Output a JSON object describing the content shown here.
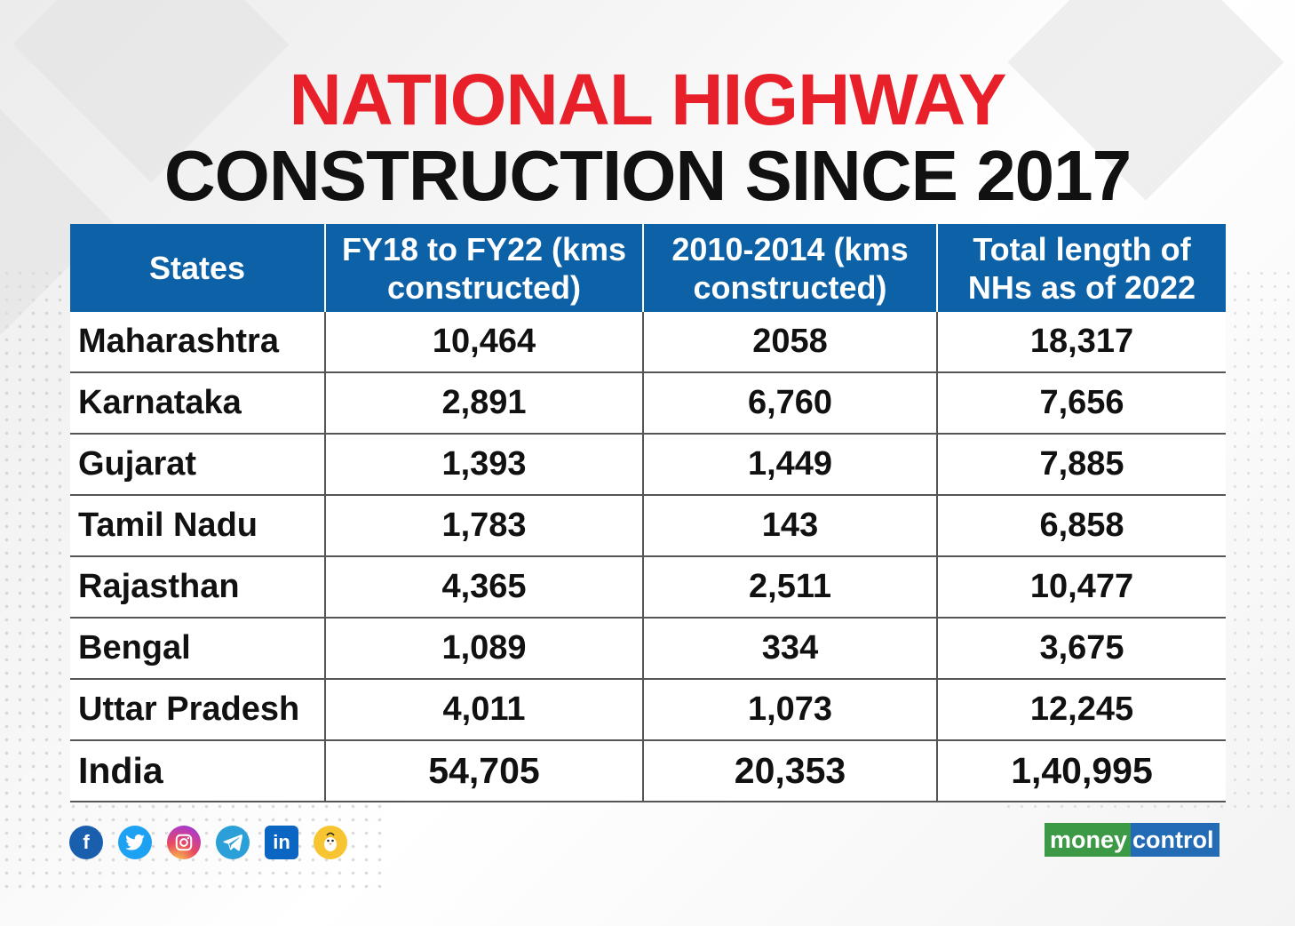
{
  "title": {
    "line1": "NATIONAL HIGHWAY",
    "line2": "CONSTRUCTION SINCE 2017"
  },
  "table": {
    "headers": [
      "States",
      "FY18 to FY22 (kms constructed)",
      "2010-2014 (kms constructed)",
      "Total length of NHs as of 2022"
    ],
    "rows": [
      [
        "Maharashtra",
        "10,464",
        "2058",
        "18,317"
      ],
      [
        "Karnataka",
        "2,891",
        "6,760",
        "7,656"
      ],
      [
        "Gujarat",
        "1,393",
        "1,449",
        "7,885"
      ],
      [
        "Tamil Nadu",
        "1,783",
        "143",
        "6,858"
      ],
      [
        "Rajasthan",
        "4,365",
        "2,511",
        "10,477"
      ],
      [
        "Bengal",
        "1,089",
        "334",
        "3,675"
      ],
      [
        "Uttar Pradesh",
        "4,011",
        "1,073",
        "12,245"
      ],
      [
        "India",
        "54,705",
        "20,353",
        "1,40,995"
      ]
    ]
  },
  "social": {
    "icons": [
      "facebook-icon",
      "twitter-icon",
      "instagram-icon",
      "telegram-icon",
      "linkedin-icon",
      "koo-icon"
    ],
    "facebook_glyph": "f",
    "linkedin_glyph": "in"
  },
  "logo": {
    "part1": "money",
    "part2": "control"
  },
  "colors": {
    "title_red": "#e8202a",
    "header_blue": "#0d62a7",
    "logo_green": "#3c9a47",
    "logo_blue": "#236cb5"
  }
}
